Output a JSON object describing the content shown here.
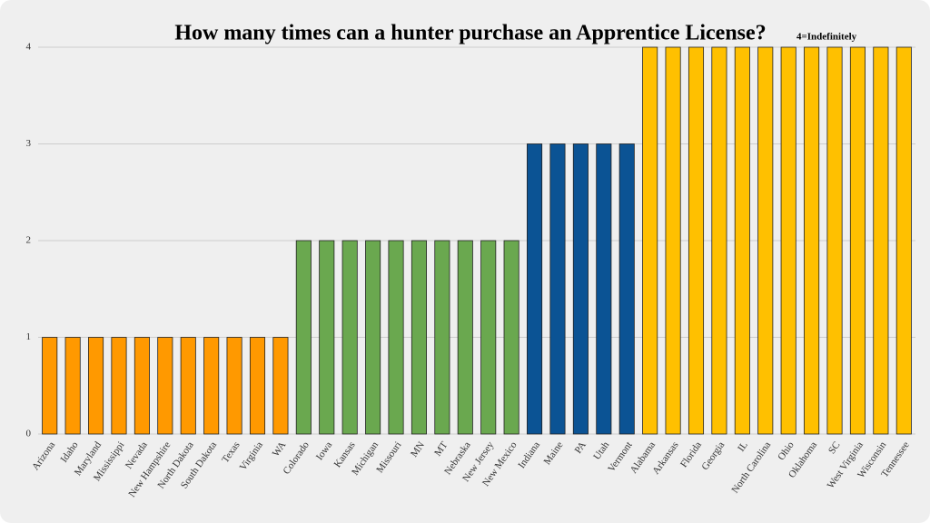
{
  "chart_data": {
    "type": "bar",
    "title": "How many times can a hunter purchase an Apprentice License?",
    "annotation": "4=Indefinitely",
    "categories": [
      "Arizona",
      "Idaho",
      "Maryland",
      "Mississippi",
      "Nevada",
      "New Hampshire",
      "North Dakota",
      "South Dakota",
      "Texas",
      "Virginia",
      "WA",
      "Colorado",
      "Iowa",
      "Kansas",
      "Michigan",
      "Missouri",
      "MN",
      "MT",
      "Nebraska",
      "New Jersey",
      "New Mexico",
      "Indiana",
      "Maine",
      "PA",
      "Utah",
      "Vermont",
      "Alabama",
      "Arkansas",
      "Florida",
      "Georgia",
      "IL",
      "North Carolina",
      "Ohio",
      "Oklahoma",
      "SC",
      "West Virginia",
      "Wisconsin",
      "Tennessee"
    ],
    "values": [
      1,
      1,
      1,
      1,
      1,
      1,
      1,
      1,
      1,
      1,
      1,
      2,
      2,
      2,
      2,
      2,
      2,
      2,
      2,
      2,
      2,
      3,
      3,
      3,
      3,
      3,
      4,
      4,
      4,
      4,
      4,
      4,
      4,
      4,
      4,
      4,
      4,
      4
    ],
    "colors": [
      "#ff9900",
      "#ff9900",
      "#ff9900",
      "#ff9900",
      "#ff9900",
      "#ff9900",
      "#ff9900",
      "#ff9900",
      "#ff9900",
      "#ff9900",
      "#ff9900",
      "#6aa84f",
      "#6aa84f",
      "#6aa84f",
      "#6aa84f",
      "#6aa84f",
      "#6aa84f",
      "#6aa84f",
      "#6aa84f",
      "#6aa84f",
      "#6aa84f",
      "#0b5394",
      "#0b5394",
      "#0b5394",
      "#0b5394",
      "#0b5394",
      "#ffc000",
      "#ffc000",
      "#ffc000",
      "#ffc000",
      "#ffc000",
      "#ffc000",
      "#ffc000",
      "#ffc000",
      "#ffc000",
      "#ffc000",
      "#ffc000",
      "#ffc000"
    ],
    "ylim": [
      0,
      4
    ],
    "yticks": [
      0,
      1,
      2,
      3,
      4
    ],
    "grid": true
  }
}
